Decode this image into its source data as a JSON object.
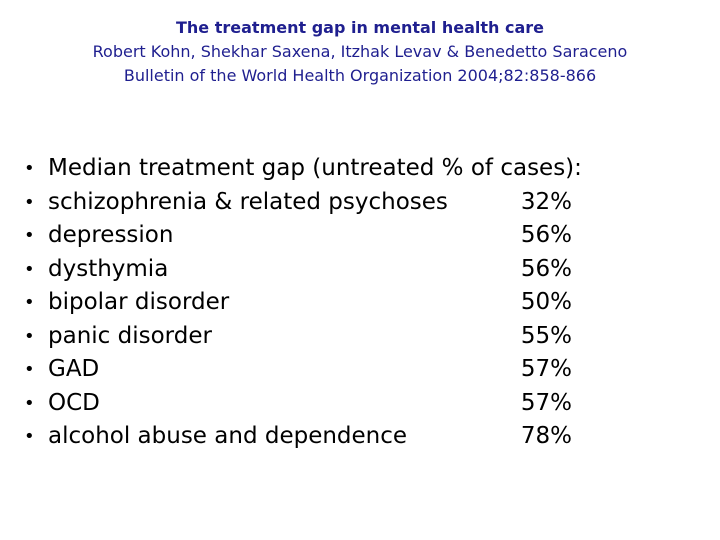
{
  "header": {
    "title": "The treatment gap in mental health care",
    "authors": "Robert Kohn, Shekhar Saxena, Itzhak Levav & Benedetto Saraceno",
    "citation": "Bulletin of the World Health Organization 2004;82:858-866"
  },
  "list": {
    "intro": "Median treatment gap (untreated % of cases):",
    "items": [
      {
        "label": "schizophrenia & related psychoses",
        "value": "32%"
      },
      {
        "label": "depression",
        "value": "56%"
      },
      {
        "label": "dysthymia",
        "value": "56%"
      },
      {
        "label": "bipolar disorder",
        "value": "50%"
      },
      {
        "label": "panic disorder",
        "value": "55%"
      },
      {
        "label": "GAD",
        "value": "57%"
      },
      {
        "label": "OCD",
        "value": "57%"
      },
      {
        "label": "alcohol abuse and dependence",
        "value": "78%"
      }
    ]
  }
}
